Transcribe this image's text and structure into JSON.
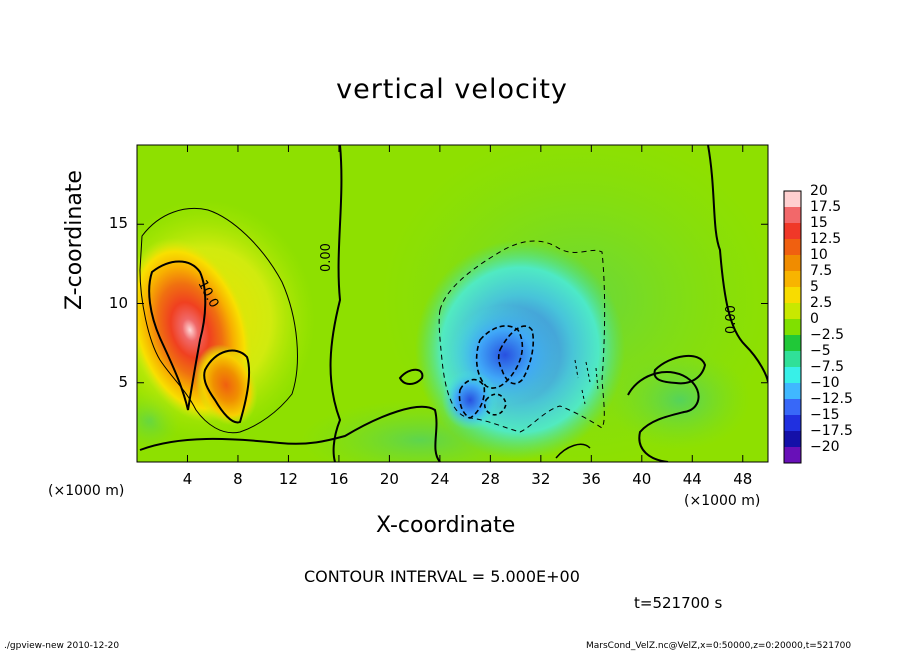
{
  "chart_data": {
    "type": "heatmap",
    "title": "vertical velocity",
    "xlabel": "X-coordinate",
    "ylabel": "Z-coordinate",
    "x_unit": "(×1000 m)",
    "xlim": [
      0,
      50
    ],
    "ylim": [
      0,
      20
    ],
    "x_ticks": [
      "4",
      "8",
      "12",
      "16",
      "20",
      "24",
      "28",
      "32",
      "36",
      "40",
      "44",
      "48"
    ],
    "x_tick_values": [
      4,
      8,
      12,
      16,
      20,
      24,
      28,
      32,
      36,
      40,
      44,
      48
    ],
    "y_ticks": [
      "5",
      "10",
      "15"
    ],
    "y_tick_values": [
      5,
      10,
      15
    ],
    "colorbar": {
      "labels": [
        "20",
        "17.5",
        "15",
        "12.5",
        "10",
        "7.5",
        "5",
        "2.5",
        "0",
        "−2.5",
        "−5",
        "−7.5",
        "−10",
        "−12.5",
        "−15",
        "−17.5",
        "−20"
      ],
      "values": [
        20,
        17.5,
        15,
        12.5,
        10,
        7.5,
        5,
        2.5,
        0,
        -2.5,
        -5,
        -7.5,
        -10,
        -12.5,
        -15,
        -17.5,
        -20
      ],
      "colors": [
        "#ffd0d0",
        "#f2686a",
        "#f03828",
        "#f06010",
        "#f08c00",
        "#f8b400",
        "#f8dc00",
        "#c8e800",
        "#80e000",
        "#20c838",
        "#30e098",
        "#38f0e8",
        "#40b8ff",
        "#3868f8",
        "#2030e0",
        "#1410a8",
        "#6810b8"
      ]
    },
    "contour_interval": "CONTOUR INTERVAL = 5.000E+00",
    "contour_labels": [
      "10.0",
      "0.00",
      "0.00"
    ],
    "features": [
      {
        "kind": "updraft",
        "x": 4.2,
        "z": 8.5,
        "peak": 20
      },
      {
        "kind": "updraft",
        "x": 7.0,
        "z": 5.5,
        "peak": 12
      },
      {
        "kind": "downdraft",
        "x": 29.5,
        "z": 6.5,
        "peak": -13
      },
      {
        "kind": "downdraft",
        "x": 26.5,
        "z": 4.0,
        "peak": -11
      }
    ],
    "time": "t=521700 s"
  },
  "footer": {
    "left": "./gpview-new   2010-12-20",
    "right": "MarsCond_VelZ.nc@VelZ,x=0:50000,z=0:20000,t=521700"
  }
}
